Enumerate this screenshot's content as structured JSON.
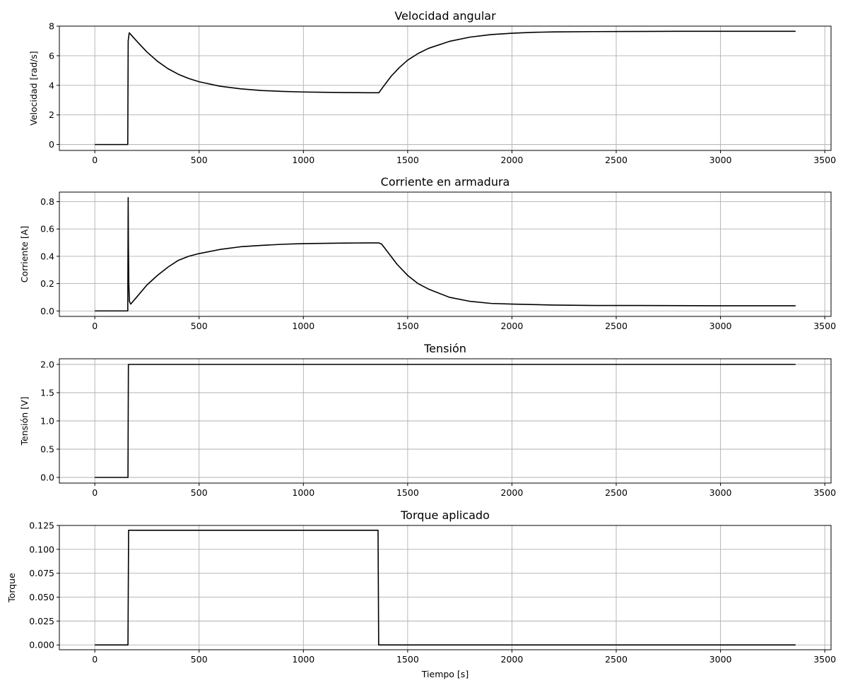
{
  "chart_data": [
    {
      "type": "line",
      "title": "Velocidad angular",
      "xlabel": "",
      "ylabel": "Velocidad [rad/s]",
      "xlim": [
        -170,
        3530
      ],
      "ylim": [
        -0.4,
        8.0
      ],
      "xticks": [
        0,
        500,
        1000,
        1500,
        2000,
        2500,
        3000,
        3500
      ],
      "yticks": [
        0,
        2,
        4,
        6,
        8
      ],
      "ytick_labels": [
        "0",
        "2",
        "4",
        "6",
        "8"
      ],
      "grid": true,
      "color": "#000000",
      "series": [
        {
          "x": [
            0,
            158,
            160,
            165,
            200,
            250,
            300,
            350,
            400,
            450,
            500,
            600,
            700,
            800,
            900,
            1000,
            1100,
            1200,
            1300,
            1362,
            1380,
            1420,
            1460,
            1500,
            1550,
            1600,
            1700,
            1800,
            1900,
            2000,
            2100,
            2200,
            2400,
            2600,
            2800,
            3000,
            3200,
            3360
          ],
          "y": [
            0,
            0,
            7.0,
            7.55,
            7.0,
            6.25,
            5.63,
            5.13,
            4.75,
            4.46,
            4.24,
            3.94,
            3.76,
            3.65,
            3.59,
            3.55,
            3.53,
            3.51,
            3.5,
            3.5,
            3.85,
            4.6,
            5.2,
            5.7,
            6.15,
            6.5,
            6.97,
            7.26,
            7.43,
            7.52,
            7.58,
            7.61,
            7.63,
            7.64,
            7.65,
            7.65,
            7.65,
            7.65
          ]
        }
      ]
    },
    {
      "type": "line",
      "title": "Corriente en armadura",
      "xlabel": "",
      "ylabel": "Corriente [A]",
      "xlim": [
        -170,
        3530
      ],
      "ylim": [
        -0.04,
        0.87
      ],
      "xticks": [
        0,
        500,
        1000,
        1500,
        2000,
        2500,
        3000,
        3500
      ],
      "yticks": [
        0.0,
        0.2,
        0.4,
        0.6,
        0.8
      ],
      "ytick_labels": [
        "0.0",
        "0.2",
        "0.4",
        "0.6",
        "0.8"
      ],
      "grid": true,
      "color": "#000000",
      "series": [
        {
          "x": [
            0,
            158,
            160,
            161,
            163,
            166,
            172,
            200,
            250,
            300,
            350,
            400,
            450,
            500,
            600,
            700,
            800,
            900,
            1000,
            1100,
            1200,
            1300,
            1362,
            1375,
            1400,
            1450,
            1500,
            1550,
            1600,
            1700,
            1800,
            1900,
            2000,
            2200,
            2400,
            2600,
            3000,
            3360
          ],
          "y": [
            0,
            0,
            0.83,
            0.5,
            0.2,
            0.07,
            0.05,
            0.1,
            0.19,
            0.26,
            0.32,
            0.37,
            0.4,
            0.42,
            0.45,
            0.47,
            0.48,
            0.488,
            0.493,
            0.495,
            0.497,
            0.498,
            0.498,
            0.49,
            0.44,
            0.34,
            0.26,
            0.2,
            0.16,
            0.1,
            0.07,
            0.055,
            0.05,
            0.043,
            0.04,
            0.04,
            0.038,
            0.038
          ]
        }
      ]
    },
    {
      "type": "line",
      "title": "Tensión",
      "xlabel": "",
      "ylabel": "Tensión [V]",
      "xlim": [
        -170,
        3530
      ],
      "ylim": [
        -0.1,
        2.1
      ],
      "xticks": [
        0,
        500,
        1000,
        1500,
        2000,
        2500,
        3000,
        3500
      ],
      "yticks": [
        0.0,
        0.5,
        1.0,
        1.5,
        2.0
      ],
      "ytick_labels": [
        "0.0",
        "0.5",
        "1.0",
        "1.5",
        "2.0"
      ],
      "grid": true,
      "color": "#000000",
      "series": [
        {
          "x": [
            0,
            159,
            161,
            3360
          ],
          "y": [
            0,
            0,
            2.0,
            2.0
          ]
        }
      ]
    },
    {
      "type": "line",
      "title": "Torque aplicado",
      "xlabel": "Tiempo [s]",
      "ylabel": "Torque",
      "xlim": [
        -170,
        3530
      ],
      "ylim": [
        -0.005,
        0.125
      ],
      "xticks": [
        0,
        500,
        1000,
        1500,
        2000,
        2500,
        3000,
        3500
      ],
      "yticks": [
        0.0,
        0.025,
        0.05,
        0.075,
        0.1,
        0.125
      ],
      "ytick_labels": [
        "0.000",
        "0.025",
        "0.050",
        "0.075",
        "0.100",
        "0.125"
      ],
      "grid": true,
      "color": "#000000",
      "series": [
        {
          "x": [
            0,
            159,
            162,
            1358,
            1361,
            3360
          ],
          "y": [
            0,
            0,
            0.12,
            0.12,
            0,
            0
          ]
        }
      ]
    }
  ]
}
